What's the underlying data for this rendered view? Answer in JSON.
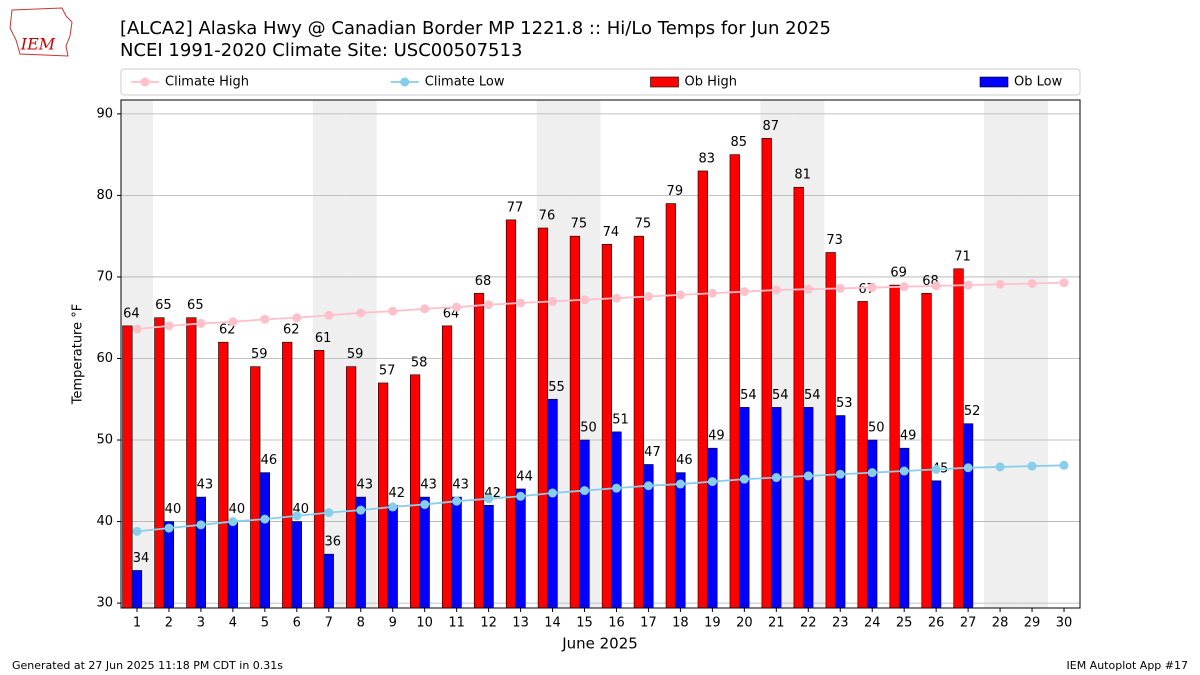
{
  "logo_text": "IEM",
  "chart_data": {
    "type": "bar",
    "title": "[ALCA2] Alaska Hwy @ Canadian Border MP 1221.8 :: Hi/Lo Temps for Jun 2025",
    "subtitle": "NCEI 1991-2020 Climate Site: USC00507513",
    "x_label": "June 2025",
    "y_label": "Temperature °F",
    "x": [
      1,
      2,
      3,
      4,
      5,
      6,
      7,
      8,
      9,
      10,
      11,
      12,
      13,
      14,
      15,
      16,
      17,
      18,
      19,
      20,
      21,
      22,
      23,
      24,
      25,
      26,
      27,
      28,
      29,
      30
    ],
    "series": [
      {
        "name": "Climate High",
        "type": "line",
        "color": "#ffc0cb",
        "values": [
          63.6,
          64.0,
          64.3,
          64.5,
          64.8,
          65.0,
          65.3,
          65.6,
          65.8,
          66.1,
          66.3,
          66.6,
          66.8,
          67.0,
          67.2,
          67.4,
          67.6,
          67.8,
          68.0,
          68.2,
          68.4,
          68.5,
          68.6,
          68.7,
          68.8,
          68.9,
          69.0,
          69.1,
          69.2,
          69.3
        ]
      },
      {
        "name": "Climate Low",
        "type": "line",
        "color": "#87ceeb",
        "values": [
          38.8,
          39.2,
          39.6,
          40.0,
          40.3,
          40.7,
          41.1,
          41.4,
          41.8,
          42.1,
          42.5,
          42.8,
          43.1,
          43.5,
          43.8,
          44.1,
          44.4,
          44.6,
          44.9,
          45.2,
          45.4,
          45.6,
          45.8,
          46.0,
          46.2,
          46.4,
          46.6,
          46.7,
          46.8,
          46.9
        ]
      },
      {
        "name": "Ob High",
        "type": "bar",
        "color": "#ff0000",
        "values": [
          64,
          65,
          65,
          62,
          59,
          62,
          61,
          59,
          57,
          58,
          64,
          68,
          77,
          76,
          75,
          74,
          75,
          79,
          83,
          85,
          87,
          81,
          73,
          67,
          69,
          68,
          71,
          null,
          null,
          null
        ]
      },
      {
        "name": "Ob Low",
        "type": "bar",
        "color": "#0000ff",
        "values": [
          34,
          40,
          43,
          40,
          46,
          40,
          36,
          43,
          42,
          43,
          43,
          42,
          44,
          55,
          50,
          51,
          47,
          46,
          49,
          54,
          54,
          54,
          53,
          50,
          49,
          45,
          52,
          null,
          null,
          null
        ]
      }
    ],
    "shaded_days": [
      1,
      7,
      8,
      14,
      15,
      21,
      22,
      28,
      29
    ],
    "xlim": [
      0.5,
      30.5
    ],
    "ylim": [
      29.4,
      91.7
    ],
    "yticks": [
      30,
      40,
      50,
      60,
      70,
      80,
      90
    ],
    "grid": true,
    "legend": "top"
  },
  "footer_left": "Generated at 27 Jun 2025 11:18 PM CDT in 0.31s",
  "footer_right": "IEM Autoplot App #17"
}
